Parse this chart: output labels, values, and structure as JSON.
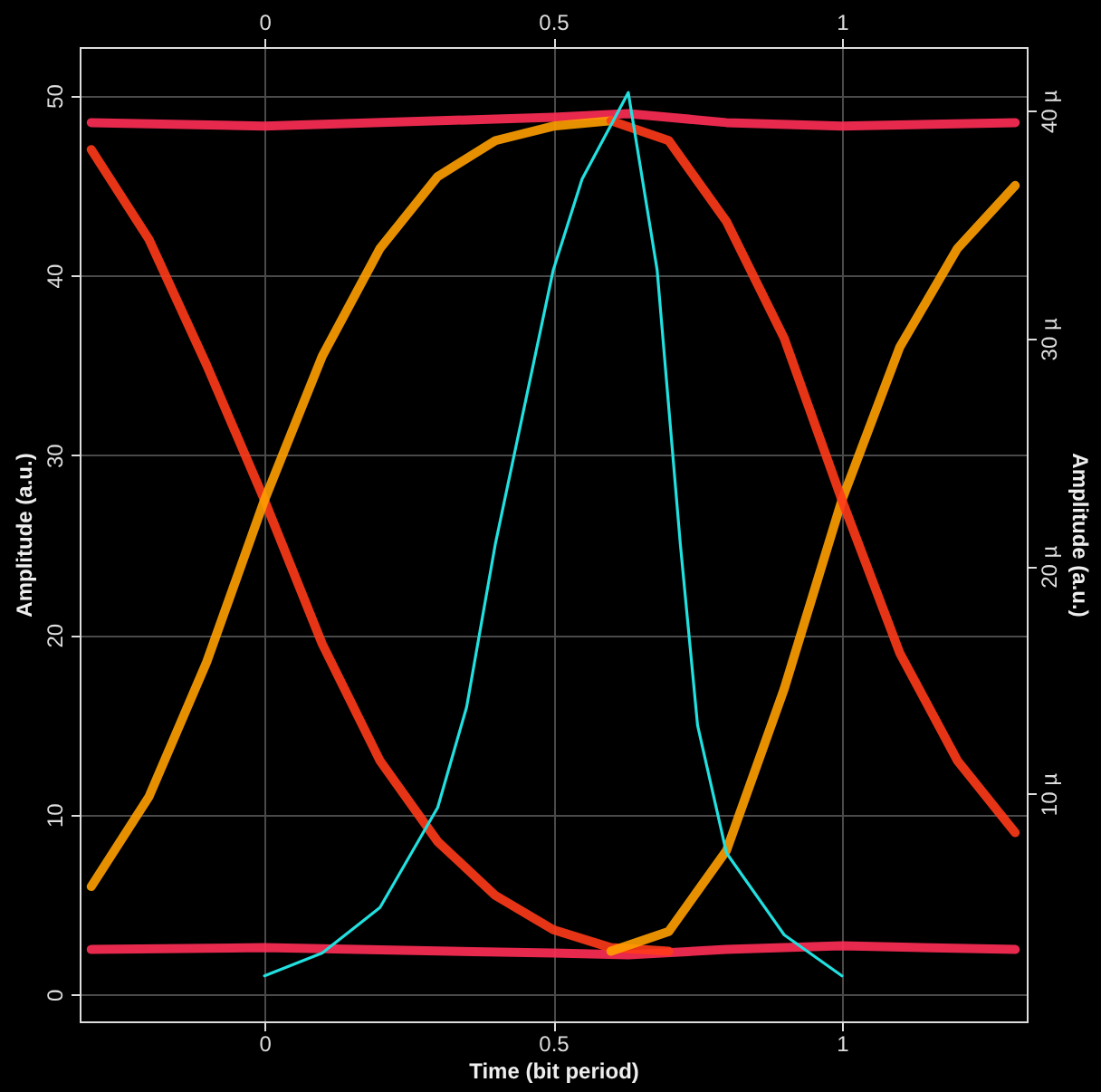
{
  "chart_data": {
    "type": "line",
    "xlabel": "Time (bit period)",
    "ylabel": "Amplitude (a.u.)",
    "y2label": "Amplitude (a.u.)",
    "xlim": [
      -0.32,
      1.32
    ],
    "xticks": [
      0,
      0.5,
      1
    ],
    "x2lim": [
      -0.32,
      1.32
    ],
    "x2ticks": [
      0,
      0.5,
      1
    ],
    "ylim": [
      -1.5,
      52.7
    ],
    "yticks": [
      0,
      10,
      20,
      30,
      40,
      50
    ],
    "y2lim": [
      0,
      42.8
    ],
    "y2ticks": [
      {
        "value": 10,
        "label": "10 µ"
      },
      {
        "value": 20,
        "label": "20 µ"
      },
      {
        "value": 30,
        "label": "30 µ"
      },
      {
        "value": 40,
        "label": "40 µ"
      }
    ],
    "grid": true,
    "line_style": "solid",
    "series": [
      {
        "color": "#ff2d55",
        "x": [
          -0.3,
          0,
          0.5,
          0.63,
          0.8,
          1,
          1.3
        ],
        "values": [
          48.5,
          48.3,
          48.8,
          49,
          48.5,
          48.3,
          48.5
        ]
      },
      {
        "color": "#ff2d55",
        "x": [
          -0.3,
          0,
          0.5,
          0.63,
          0.8,
          1,
          1.3
        ],
        "values": [
          2.5,
          2.6,
          2.3,
          2.2,
          2.5,
          2.7,
          2.5
        ]
      },
      {
        "color": "#ff3a1a",
        "x": [
          -0.3,
          -0.2,
          -0.1,
          0,
          0.1,
          0.2,
          0.3,
          0.4,
          0.5,
          0.6,
          0.7
        ],
        "values": [
          47,
          42,
          35,
          27.5,
          19.5,
          13,
          8.5,
          5.5,
          3.6,
          2.6,
          2.4
        ]
      },
      {
        "color": "#ffa000",
        "x": [
          -0.3,
          -0.2,
          -0.1,
          0,
          0.1,
          0.2,
          0.3,
          0.4,
          0.5,
          0.6
        ],
        "values": [
          6,
          11,
          18.5,
          27.5,
          35.5,
          41.5,
          45.5,
          47.5,
          48.3,
          48.6
        ]
      },
      {
        "color": "#ffa000",
        "x": [
          0.6,
          0.7,
          0.8,
          0.9,
          1,
          1.1,
          1.2,
          1.3
        ],
        "values": [
          2.4,
          3.5,
          8,
          17,
          27.5,
          36,
          41.5,
          45
        ]
      },
      {
        "color": "#ff3a1a",
        "x": [
          0.6,
          0.7,
          0.8,
          0.9,
          1,
          1.1,
          1.2,
          1.3
        ],
        "values": [
          48.6,
          47.5,
          43,
          36.5,
          27.5,
          19,
          13,
          9
        ]
      },
      {
        "color": "#22e0e0",
        "axis": "y2",
        "x": [
          0,
          0.1,
          0.2,
          0.3,
          0.35,
          0.4,
          0.5,
          0.55,
          0.63,
          0.68,
          0.72,
          0.75,
          0.8,
          0.9,
          1
        ],
        "values": [
          2,
          3,
          5,
          9.4,
          13.8,
          21,
          33,
          37,
          40.8,
          33,
          21,
          13,
          7.4,
          3.8,
          2
        ]
      }
    ]
  }
}
